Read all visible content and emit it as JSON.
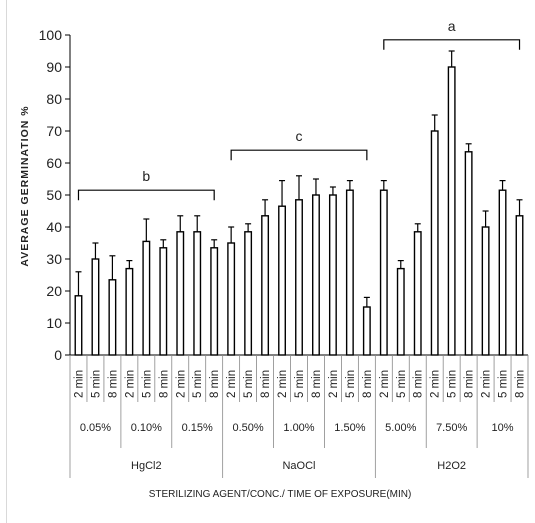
{
  "chart_data": {
    "type": "bar",
    "xlabel": "STERILIZING AGENT/CONC./ TIME OF EXPOSURE(MIN)",
    "ylabel": "AVERAGE GERMINATION %",
    "ylim": [
      0,
      100
    ],
    "yticks": [
      0,
      10,
      20,
      30,
      40,
      50,
      60,
      70,
      80,
      90,
      100
    ],
    "grid": false,
    "legend": "none",
    "bar_color": "#ffffff",
    "stroke_color": "#000000",
    "time_labels": [
      "2 min",
      "5 min",
      "8 min"
    ],
    "groups": [
      {
        "agent": "HgCl2",
        "concentrations": [
          {
            "label": "0.05%",
            "values": [
              18.5,
              30,
              23.5
            ],
            "errors": [
              7.5,
              5,
              7.5
            ]
          },
          {
            "label": "0.10%",
            "values": [
              27,
              35.5,
              33.5
            ],
            "errors": [
              2.5,
              7,
              2.5
            ]
          },
          {
            "label": "0.15%",
            "values": [
              38.5,
              38.5,
              33.5
            ],
            "errors": [
              5,
              5,
              2.5
            ]
          }
        ]
      },
      {
        "agent": "NaOCl",
        "concentrations": [
          {
            "label": "0.50%",
            "values": [
              35,
              38.5,
              43.5
            ],
            "errors": [
              5,
              2.5,
              5
            ]
          },
          {
            "label": "1.00%",
            "values": [
              46.5,
              48.5,
              50
            ],
            "errors": [
              8,
              7.5,
              5
            ]
          },
          {
            "label": "1.50%",
            "values": [
              50,
              51.5,
              15
            ],
            "errors": [
              2.5,
              3,
              3
            ]
          }
        ]
      },
      {
        "agent": "H2O2",
        "concentrations": [
          {
            "label": "5.00%",
            "values": [
              51.5,
              27,
              38.5
            ],
            "errors": [
              3,
              2.5,
              2.5
            ]
          },
          {
            "label": "7.50%",
            "values": [
              70,
              90,
              63.5
            ],
            "errors": [
              5,
              5,
              2.5
            ]
          },
          {
            "label": "10%",
            "values": [
              40,
              51.5,
              43.5
            ],
            "errors": [
              5,
              3,
              5
            ]
          }
        ]
      }
    ],
    "annotations": [
      {
        "letter": "b",
        "from_bar": 0,
        "to_bar": 8,
        "level": 51.5
      },
      {
        "letter": "c",
        "from_bar": 9,
        "to_bar": 17,
        "level": 64
      },
      {
        "letter": "a",
        "from_bar": 18,
        "to_bar": 26,
        "level": 98.5
      }
    ]
  }
}
